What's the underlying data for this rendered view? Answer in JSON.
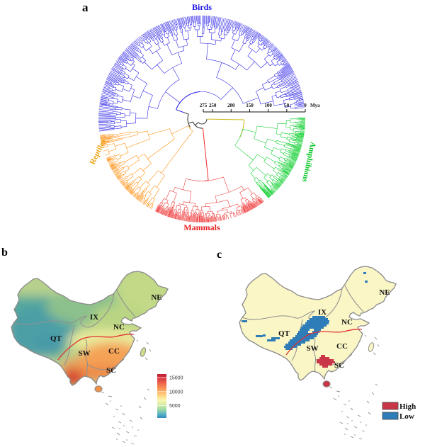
{
  "figure_type": "scientific-figure",
  "panels": {
    "a": {
      "label": "a",
      "description": "circular-phylogenetic-tree",
      "clades": [
        {
          "name": "Birds",
          "color": "#1B12E6",
          "label_color": "#1B12E6"
        },
        {
          "name": "Reptiles",
          "color": "#FF8800",
          "label_color": "#F0A213"
        },
        {
          "name": "Amphibians",
          "color": "#00CC22",
          "label_color": "#00C41E"
        },
        {
          "name": "Mammals",
          "color": "#EE2B2B",
          "label_color": "#E82121"
        }
      ],
      "time_axis": {
        "ticks": [
          275,
          250,
          200,
          150,
          100,
          50,
          0
        ],
        "unit": "Mya"
      }
    },
    "b": {
      "label": "b",
      "description": "species-richness-map-of-china",
      "regions": [
        "NE",
        "IX",
        "NC",
        "QT",
        "SW",
        "CC",
        "SC"
      ],
      "colorbar": {
        "ticks": [
          15000,
          10000,
          5000
        ],
        "top_color": "#C01C30",
        "bottom_color": "#3288BD"
      }
    },
    "c": {
      "label": "c",
      "description": "high-low-hotspot-map-of-china",
      "regions": [
        "NE",
        "IX",
        "NC",
        "QT",
        "SW",
        "CC",
        "SC"
      ],
      "legend": [
        {
          "label": "High",
          "color": "#C93648"
        },
        {
          "label": "Low",
          "color": "#2E7CB8"
        }
      ]
    }
  }
}
